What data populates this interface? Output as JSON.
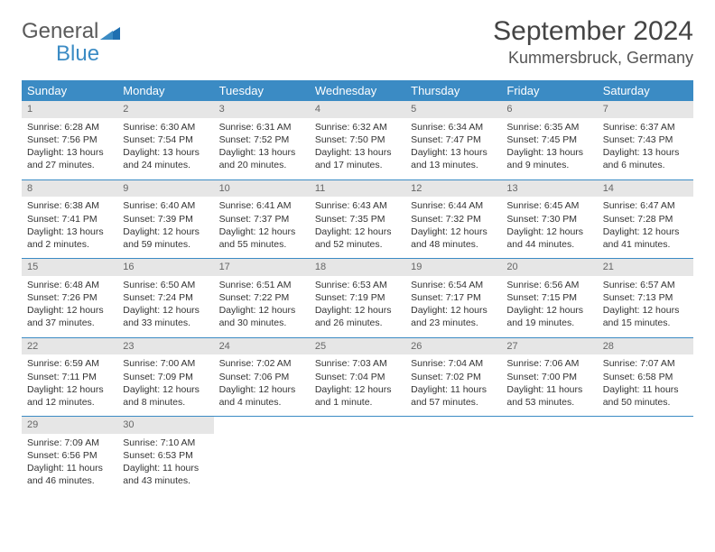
{
  "logo": {
    "word1": "General",
    "word2": "Blue"
  },
  "title": "September 2024",
  "location": "Kummersbruck, Germany",
  "colors": {
    "header_bg": "#3b8bc4",
    "header_text": "#ffffff",
    "border": "#3b8bc4",
    "daynum_bg": "#e6e6e6",
    "text": "#333333",
    "logo_gray": "#5a5a5a",
    "logo_blue": "#3b8bc4"
  },
  "weekdays": [
    "Sunday",
    "Monday",
    "Tuesday",
    "Wednesday",
    "Thursday",
    "Friday",
    "Saturday"
  ],
  "days": [
    {
      "n": 1,
      "sr": "6:28 AM",
      "ss": "7:56 PM",
      "dl": "13 hours and 27 minutes."
    },
    {
      "n": 2,
      "sr": "6:30 AM",
      "ss": "7:54 PM",
      "dl": "13 hours and 24 minutes."
    },
    {
      "n": 3,
      "sr": "6:31 AM",
      "ss": "7:52 PM",
      "dl": "13 hours and 20 minutes."
    },
    {
      "n": 4,
      "sr": "6:32 AM",
      "ss": "7:50 PM",
      "dl": "13 hours and 17 minutes."
    },
    {
      "n": 5,
      "sr": "6:34 AM",
      "ss": "7:47 PM",
      "dl": "13 hours and 13 minutes."
    },
    {
      "n": 6,
      "sr": "6:35 AM",
      "ss": "7:45 PM",
      "dl": "13 hours and 9 minutes."
    },
    {
      "n": 7,
      "sr": "6:37 AM",
      "ss": "7:43 PM",
      "dl": "13 hours and 6 minutes."
    },
    {
      "n": 8,
      "sr": "6:38 AM",
      "ss": "7:41 PM",
      "dl": "13 hours and 2 minutes."
    },
    {
      "n": 9,
      "sr": "6:40 AM",
      "ss": "7:39 PM",
      "dl": "12 hours and 59 minutes."
    },
    {
      "n": 10,
      "sr": "6:41 AM",
      "ss": "7:37 PM",
      "dl": "12 hours and 55 minutes."
    },
    {
      "n": 11,
      "sr": "6:43 AM",
      "ss": "7:35 PM",
      "dl": "12 hours and 52 minutes."
    },
    {
      "n": 12,
      "sr": "6:44 AM",
      "ss": "7:32 PM",
      "dl": "12 hours and 48 minutes."
    },
    {
      "n": 13,
      "sr": "6:45 AM",
      "ss": "7:30 PM",
      "dl": "12 hours and 44 minutes."
    },
    {
      "n": 14,
      "sr": "6:47 AM",
      "ss": "7:28 PM",
      "dl": "12 hours and 41 minutes."
    },
    {
      "n": 15,
      "sr": "6:48 AM",
      "ss": "7:26 PM",
      "dl": "12 hours and 37 minutes."
    },
    {
      "n": 16,
      "sr": "6:50 AM",
      "ss": "7:24 PM",
      "dl": "12 hours and 33 minutes."
    },
    {
      "n": 17,
      "sr": "6:51 AM",
      "ss": "7:22 PM",
      "dl": "12 hours and 30 minutes."
    },
    {
      "n": 18,
      "sr": "6:53 AM",
      "ss": "7:19 PM",
      "dl": "12 hours and 26 minutes."
    },
    {
      "n": 19,
      "sr": "6:54 AM",
      "ss": "7:17 PM",
      "dl": "12 hours and 23 minutes."
    },
    {
      "n": 20,
      "sr": "6:56 AM",
      "ss": "7:15 PM",
      "dl": "12 hours and 19 minutes."
    },
    {
      "n": 21,
      "sr": "6:57 AM",
      "ss": "7:13 PM",
      "dl": "12 hours and 15 minutes."
    },
    {
      "n": 22,
      "sr": "6:59 AM",
      "ss": "7:11 PM",
      "dl": "12 hours and 12 minutes."
    },
    {
      "n": 23,
      "sr": "7:00 AM",
      "ss": "7:09 PM",
      "dl": "12 hours and 8 minutes."
    },
    {
      "n": 24,
      "sr": "7:02 AM",
      "ss": "7:06 PM",
      "dl": "12 hours and 4 minutes."
    },
    {
      "n": 25,
      "sr": "7:03 AM",
      "ss": "7:04 PM",
      "dl": "12 hours and 1 minute."
    },
    {
      "n": 26,
      "sr": "7:04 AM",
      "ss": "7:02 PM",
      "dl": "11 hours and 57 minutes."
    },
    {
      "n": 27,
      "sr": "7:06 AM",
      "ss": "7:00 PM",
      "dl": "11 hours and 53 minutes."
    },
    {
      "n": 28,
      "sr": "7:07 AM",
      "ss": "6:58 PM",
      "dl": "11 hours and 50 minutes."
    },
    {
      "n": 29,
      "sr": "7:09 AM",
      "ss": "6:56 PM",
      "dl": "11 hours and 46 minutes."
    },
    {
      "n": 30,
      "sr": "7:10 AM",
      "ss": "6:53 PM",
      "dl": "11 hours and 43 minutes."
    }
  ],
  "labels": {
    "sunrise": "Sunrise:",
    "sunset": "Sunset:",
    "daylight": "Daylight:"
  }
}
